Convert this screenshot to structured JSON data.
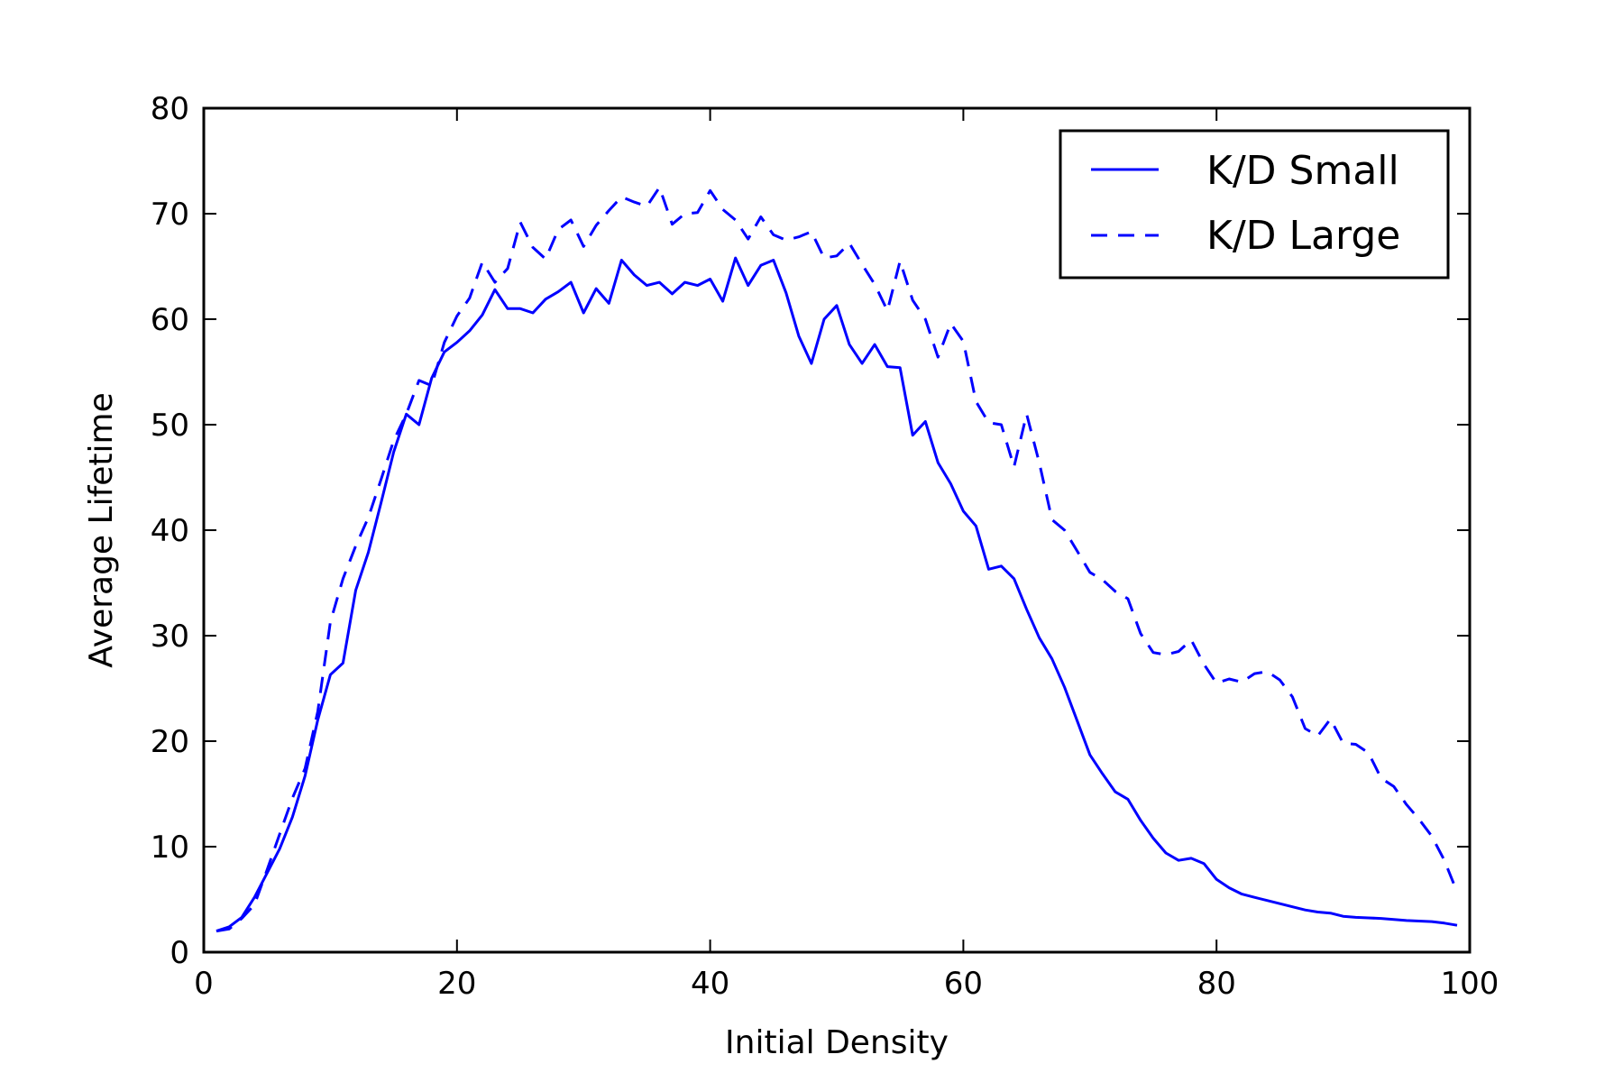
{
  "chart_data": {
    "type": "line",
    "title": "",
    "xlabel": "Initial Density",
    "ylabel": "Average Lifetime",
    "xlim": [
      0,
      100
    ],
    "ylim": [
      0,
      80
    ],
    "xticks": [
      0,
      20,
      40,
      60,
      80,
      100
    ],
    "yticks": [
      0,
      10,
      20,
      30,
      40,
      50,
      60,
      70,
      80
    ],
    "grid": false,
    "legend_position": "top-right",
    "x": [
      1,
      2,
      3,
      4,
      5,
      6,
      7,
      8,
      9,
      10,
      11,
      12,
      13,
      14,
      15,
      16,
      17,
      18,
      19,
      20,
      21,
      22,
      23,
      24,
      25,
      26,
      27,
      28,
      29,
      30,
      31,
      32,
      33,
      34,
      35,
      36,
      37,
      38,
      39,
      40,
      41,
      42,
      43,
      44,
      45,
      46,
      47,
      48,
      49,
      50,
      51,
      52,
      53,
      54,
      55,
      56,
      57,
      58,
      59,
      60,
      61,
      62,
      63,
      64,
      65,
      66,
      67,
      68,
      69,
      70,
      71,
      72,
      73,
      74,
      75,
      76,
      77,
      78,
      79,
      80,
      81,
      82,
      83,
      84,
      85,
      86,
      87,
      88,
      89,
      90,
      91,
      92,
      93,
      94,
      95,
      96,
      97,
      98,
      99
    ],
    "series": [
      {
        "name": "K/D Small",
        "style": "solid",
        "color": "#0000ff",
        "values": [
          2.0,
          2.4,
          3.3,
          5.2,
          7.5,
          9.8,
          12.8,
          16.7,
          22.0,
          26.3,
          27.4,
          34.3,
          37.9,
          42.6,
          47.4,
          51.0,
          50.0,
          54.4,
          56.9,
          57.8,
          58.9,
          60.4,
          62.8,
          61.0,
          61.0,
          60.6,
          61.9,
          62.6,
          63.5,
          60.6,
          62.9,
          61.5,
          65.6,
          64.2,
          63.2,
          63.5,
          62.4,
          63.5,
          63.2,
          63.8,
          61.7,
          65.8,
          63.2,
          65.1,
          65.6,
          62.5,
          58.4,
          55.8,
          60.0,
          61.3,
          57.6,
          55.8,
          57.6,
          55.5,
          55.4,
          49.0,
          50.3,
          46.4,
          44.4,
          41.8,
          40.4,
          36.3,
          36.6,
          35.4,
          32.5,
          29.8,
          27.8,
          25.1,
          21.9,
          18.7,
          16.9,
          15.2,
          14.5,
          12.5,
          10.8,
          9.4,
          8.7,
          8.9,
          8.4,
          6.9,
          6.1,
          5.5,
          5.2,
          4.9,
          4.6,
          4.3,
          4.0,
          3.8,
          3.7,
          3.4,
          3.3,
          3.25,
          3.2,
          3.1,
          3.0,
          2.95,
          2.9,
          2.75,
          2.55
        ]
      },
      {
        "name": "K/D Large",
        "style": "dashed",
        "color": "#0000ff",
        "values": [
          2.0,
          2.2,
          3.2,
          4.5,
          7.8,
          11.2,
          14.6,
          17.4,
          22.8,
          31.3,
          35.4,
          38.5,
          41.2,
          44.8,
          48.5,
          51.0,
          54.2,
          53.7,
          57.8,
          60.3,
          62.0,
          65.4,
          63.5,
          64.8,
          69.2,
          66.8,
          65.7,
          68.5,
          69.4,
          66.9,
          68.9,
          70.3,
          71.6,
          71.1,
          70.7,
          72.5,
          69.0,
          70.0,
          70.1,
          72.2,
          70.4,
          69.4,
          67.6,
          69.7,
          68.0,
          67.5,
          67.8,
          68.3,
          65.8,
          66.0,
          67.2,
          65.2,
          63.3,
          60.8,
          65.5,
          61.8,
          60.0,
          56.4,
          59.6,
          57.9,
          52.2,
          50.2,
          50.0,
          46.0,
          51.0,
          46.4,
          41.0,
          40.0,
          38.0,
          36.0,
          35.3,
          34.2,
          33.5,
          30.2,
          28.4,
          28.2,
          28.5,
          29.6,
          27.3,
          25.5,
          25.9,
          25.6,
          26.4,
          26.6,
          25.8,
          24.2,
          21.2,
          20.5,
          22.1,
          19.8,
          19.7,
          18.9,
          16.5,
          15.7,
          14.0,
          12.6,
          11.0,
          8.7,
          5.7
        ]
      }
    ]
  }
}
